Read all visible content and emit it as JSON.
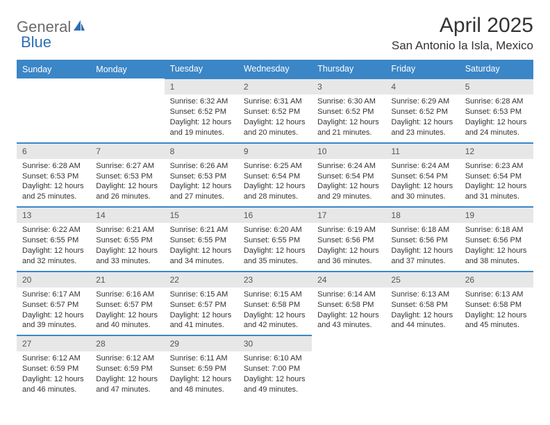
{
  "brand": {
    "part1": "General",
    "part2": "Blue"
  },
  "title": "April 2025",
  "location": "San Antonio la Isla, Mexico",
  "day_headers": [
    "Sunday",
    "Monday",
    "Tuesday",
    "Wednesday",
    "Thursday",
    "Friday",
    "Saturday"
  ],
  "colors": {
    "header_bg": "#3b86c7",
    "header_text": "#ffffff",
    "daynum_bg": "#e7e7e7",
    "logo_general": "#6a6a6a",
    "logo_blue": "#2f6fb5",
    "text": "#333333",
    "background": "#ffffff"
  },
  "weeks": [
    [
      {
        "empty": true
      },
      {
        "empty": true
      },
      {
        "n": "1",
        "sr": "Sunrise: 6:32 AM",
        "ss": "Sunset: 6:52 PM",
        "d1": "Daylight: 12 hours",
        "d2": "and 19 minutes."
      },
      {
        "n": "2",
        "sr": "Sunrise: 6:31 AM",
        "ss": "Sunset: 6:52 PM",
        "d1": "Daylight: 12 hours",
        "d2": "and 20 minutes."
      },
      {
        "n": "3",
        "sr": "Sunrise: 6:30 AM",
        "ss": "Sunset: 6:52 PM",
        "d1": "Daylight: 12 hours",
        "d2": "and 21 minutes."
      },
      {
        "n": "4",
        "sr": "Sunrise: 6:29 AM",
        "ss": "Sunset: 6:52 PM",
        "d1": "Daylight: 12 hours",
        "d2": "and 23 minutes."
      },
      {
        "n": "5",
        "sr": "Sunrise: 6:28 AM",
        "ss": "Sunset: 6:53 PM",
        "d1": "Daylight: 12 hours",
        "d2": "and 24 minutes."
      }
    ],
    [
      {
        "n": "6",
        "sr": "Sunrise: 6:28 AM",
        "ss": "Sunset: 6:53 PM",
        "d1": "Daylight: 12 hours",
        "d2": "and 25 minutes."
      },
      {
        "n": "7",
        "sr": "Sunrise: 6:27 AM",
        "ss": "Sunset: 6:53 PM",
        "d1": "Daylight: 12 hours",
        "d2": "and 26 minutes."
      },
      {
        "n": "8",
        "sr": "Sunrise: 6:26 AM",
        "ss": "Sunset: 6:53 PM",
        "d1": "Daylight: 12 hours",
        "d2": "and 27 minutes."
      },
      {
        "n": "9",
        "sr": "Sunrise: 6:25 AM",
        "ss": "Sunset: 6:54 PM",
        "d1": "Daylight: 12 hours",
        "d2": "and 28 minutes."
      },
      {
        "n": "10",
        "sr": "Sunrise: 6:24 AM",
        "ss": "Sunset: 6:54 PM",
        "d1": "Daylight: 12 hours",
        "d2": "and 29 minutes."
      },
      {
        "n": "11",
        "sr": "Sunrise: 6:24 AM",
        "ss": "Sunset: 6:54 PM",
        "d1": "Daylight: 12 hours",
        "d2": "and 30 minutes."
      },
      {
        "n": "12",
        "sr": "Sunrise: 6:23 AM",
        "ss": "Sunset: 6:54 PM",
        "d1": "Daylight: 12 hours",
        "d2": "and 31 minutes."
      }
    ],
    [
      {
        "n": "13",
        "sr": "Sunrise: 6:22 AM",
        "ss": "Sunset: 6:55 PM",
        "d1": "Daylight: 12 hours",
        "d2": "and 32 minutes."
      },
      {
        "n": "14",
        "sr": "Sunrise: 6:21 AM",
        "ss": "Sunset: 6:55 PM",
        "d1": "Daylight: 12 hours",
        "d2": "and 33 minutes."
      },
      {
        "n": "15",
        "sr": "Sunrise: 6:21 AM",
        "ss": "Sunset: 6:55 PM",
        "d1": "Daylight: 12 hours",
        "d2": "and 34 minutes."
      },
      {
        "n": "16",
        "sr": "Sunrise: 6:20 AM",
        "ss": "Sunset: 6:55 PM",
        "d1": "Daylight: 12 hours",
        "d2": "and 35 minutes."
      },
      {
        "n": "17",
        "sr": "Sunrise: 6:19 AM",
        "ss": "Sunset: 6:56 PM",
        "d1": "Daylight: 12 hours",
        "d2": "and 36 minutes."
      },
      {
        "n": "18",
        "sr": "Sunrise: 6:18 AM",
        "ss": "Sunset: 6:56 PM",
        "d1": "Daylight: 12 hours",
        "d2": "and 37 minutes."
      },
      {
        "n": "19",
        "sr": "Sunrise: 6:18 AM",
        "ss": "Sunset: 6:56 PM",
        "d1": "Daylight: 12 hours",
        "d2": "and 38 minutes."
      }
    ],
    [
      {
        "n": "20",
        "sr": "Sunrise: 6:17 AM",
        "ss": "Sunset: 6:57 PM",
        "d1": "Daylight: 12 hours",
        "d2": "and 39 minutes."
      },
      {
        "n": "21",
        "sr": "Sunrise: 6:16 AM",
        "ss": "Sunset: 6:57 PM",
        "d1": "Daylight: 12 hours",
        "d2": "and 40 minutes."
      },
      {
        "n": "22",
        "sr": "Sunrise: 6:15 AM",
        "ss": "Sunset: 6:57 PM",
        "d1": "Daylight: 12 hours",
        "d2": "and 41 minutes."
      },
      {
        "n": "23",
        "sr": "Sunrise: 6:15 AM",
        "ss": "Sunset: 6:58 PM",
        "d1": "Daylight: 12 hours",
        "d2": "and 42 minutes."
      },
      {
        "n": "24",
        "sr": "Sunrise: 6:14 AM",
        "ss": "Sunset: 6:58 PM",
        "d1": "Daylight: 12 hours",
        "d2": "and 43 minutes."
      },
      {
        "n": "25",
        "sr": "Sunrise: 6:13 AM",
        "ss": "Sunset: 6:58 PM",
        "d1": "Daylight: 12 hours",
        "d2": "and 44 minutes."
      },
      {
        "n": "26",
        "sr": "Sunrise: 6:13 AM",
        "ss": "Sunset: 6:58 PM",
        "d1": "Daylight: 12 hours",
        "d2": "and 45 minutes."
      }
    ],
    [
      {
        "n": "27",
        "sr": "Sunrise: 6:12 AM",
        "ss": "Sunset: 6:59 PM",
        "d1": "Daylight: 12 hours",
        "d2": "and 46 minutes."
      },
      {
        "n": "28",
        "sr": "Sunrise: 6:12 AM",
        "ss": "Sunset: 6:59 PM",
        "d1": "Daylight: 12 hours",
        "d2": "and 47 minutes."
      },
      {
        "n": "29",
        "sr": "Sunrise: 6:11 AM",
        "ss": "Sunset: 6:59 PM",
        "d1": "Daylight: 12 hours",
        "d2": "and 48 minutes."
      },
      {
        "n": "30",
        "sr": "Sunrise: 6:10 AM",
        "ss": "Sunset: 7:00 PM",
        "d1": "Daylight: 12 hours",
        "d2": "and 49 minutes."
      },
      {
        "empty": true
      },
      {
        "empty": true
      },
      {
        "empty": true
      }
    ]
  ]
}
